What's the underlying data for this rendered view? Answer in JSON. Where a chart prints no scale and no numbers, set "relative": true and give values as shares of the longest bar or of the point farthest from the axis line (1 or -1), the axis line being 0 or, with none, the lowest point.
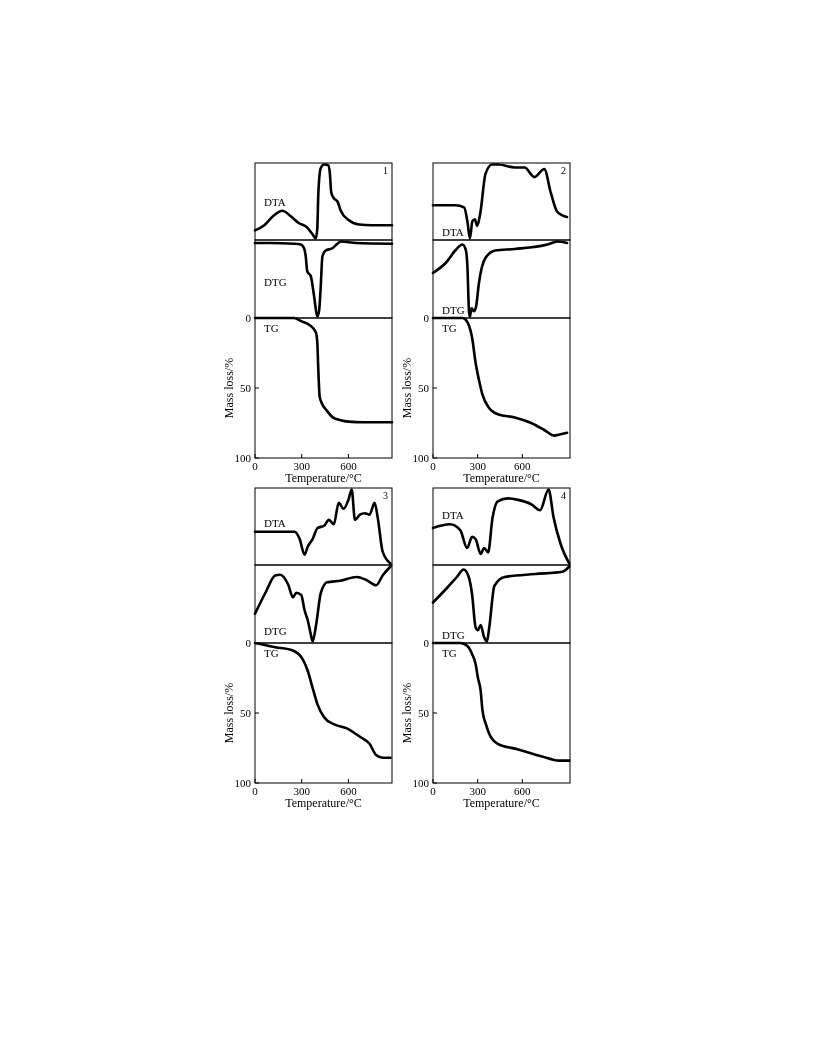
{
  "chart_data": [
    {
      "type": "line",
      "title": "1",
      "relative": true,
      "xlim": [
        0,
        880
      ],
      "x": [
        0,
        60,
        120,
        176,
        230,
        280,
        330,
        369,
        390,
        400,
        407,
        422,
        444,
        470,
        480,
        490,
        508,
        530,
        551,
        600,
        670,
        750,
        880
      ],
      "series": [
        {
          "name": "DTA",
          "color": "#000000",
          "values": [
            0.11,
            0.18,
            0.31,
            0.375,
            0.3,
            0.21,
            0.16,
            0.06,
            0,
            0.13,
            0.62,
            0.95,
            1,
            0.99,
            0.9,
            0.62,
            0.54,
            0.5,
            0.375,
            0.25,
            0.19,
            0.18,
            0.18
          ]
        }
      ]
    },
    {
      "type": "line",
      "relative": true,
      "xlim": [
        0,
        880
      ],
      "x": [
        0,
        100,
        250,
        294,
        315,
        326,
        336,
        358,
        379,
        400,
        412,
        422,
        433,
        454,
        497,
        529,
        551,
        650,
        880
      ],
      "series": [
        {
          "name": "DTG",
          "color": "#000000",
          "values": [
            0.98,
            0.98,
            0.97,
            0.96,
            0.91,
            0.8,
            0.6,
            0.54,
            0.28,
            0,
            0.08,
            0.39,
            0.8,
            0.88,
            0.91,
            0.97,
            1,
            0.98,
            0.97
          ]
        }
      ]
    },
    {
      "type": "line",
      "xlim": [
        0,
        880
      ],
      "ylim": [
        100,
        0
      ],
      "xticks": [
        0,
        300,
        600
      ],
      "yticks": [
        0,
        50,
        100
      ],
      "xlabel": "Temperature/°C",
      "ylabel": "Mass loss/%",
      "x": [
        0,
        250,
        300,
        350,
        390,
        400,
        405,
        410,
        415,
        430,
        460,
        500,
        550,
        600,
        700,
        880
      ],
      "series": [
        {
          "name": "TG",
          "color": "#000000",
          "values": [
            0,
            0,
            2.4,
            5,
            10,
            17,
            32,
            46,
            56,
            61,
            66,
            71,
            73,
            74,
            74.5,
            74.5
          ]
        }
      ]
    },
    {
      "type": "line",
      "title": "2",
      "relative": true,
      "xlim": [
        0,
        920
      ],
      "x": [
        0,
        150,
        209,
        231,
        248,
        264,
        281,
        297,
        319,
        352,
        396,
        440,
        549,
        615,
        681,
        747,
        791,
        835,
        900
      ],
      "series": [
        {
          "name": "DTA",
          "color": "#000000",
          "values": [
            0.45,
            0.45,
            0.42,
            0.23,
            0,
            0.23,
            0.26,
            0.17,
            0.36,
            0.87,
            1,
            1,
            0.96,
            0.96,
            0.83,
            0.94,
            0.62,
            0.36,
            0.29
          ]
        }
      ]
    },
    {
      "type": "line",
      "relative": true,
      "xlim": [
        0,
        920
      ],
      "x": [
        0,
        88,
        154,
        198,
        220,
        231,
        242,
        248,
        259,
        275,
        290,
        308,
        352,
        418,
        549,
        769,
        835,
        900
      ],
      "series": [
        {
          "name": "DTG",
          "color": "#000000",
          "values": [
            0.58,
            0.72,
            0.89,
            0.96,
            0.89,
            0.67,
            0.06,
            0,
            0.11,
            0.07,
            0.14,
            0.44,
            0.78,
            0.88,
            0.9,
            0.96,
            1,
            0.98
          ]
        }
      ]
    },
    {
      "type": "line",
      "xlim": [
        0,
        920
      ],
      "ylim": [
        100,
        0
      ],
      "xticks": [
        0,
        300,
        600
      ],
      "yticks": [
        0,
        50,
        100
      ],
      "xlabel": "Temperature/°C",
      "ylabel": "Mass loss/%",
      "x": [
        0,
        200,
        231,
        264,
        286,
        308,
        330,
        374,
        440,
        549,
        660,
        747,
        813,
        857,
        900
      ],
      "series": [
        {
          "name": "TG",
          "color": "#000000",
          "values": [
            0,
            0,
            3,
            15,
            32,
            44,
            54,
            64,
            69,
            71,
            75,
            80,
            84,
            83,
            82
          ]
        }
      ]
    },
    {
      "type": "line",
      "title": "3",
      "relative": true,
      "xlim": [
        0,
        880
      ],
      "x": [
        0,
        255,
        287,
        318,
        339,
        370,
        402,
        444,
        475,
        506,
        538,
        569,
        600,
        621,
        642,
        674,
        705,
        736,
        768,
        789,
        820,
        870
      ],
      "series": [
        {
          "name": "DTA",
          "color": "#000000",
          "values": [
            0.43,
            0.43,
            0.33,
            0.12,
            0.23,
            0.33,
            0.48,
            0.51,
            0.59,
            0.53,
            0.82,
            0.74,
            0.86,
            1,
            0.59,
            0.66,
            0.68,
            0.66,
            0.82,
            0.61,
            0.16,
            0
          ]
        }
      ]
    },
    {
      "type": "line",
      "relative": true,
      "xlim": [
        0,
        880
      ],
      "x": [
        0,
        67,
        130,
        161,
        213,
        244,
        265,
        297,
        318,
        339,
        360,
        370,
        391,
        423,
        464,
        548,
        653,
        715,
        778,
        820,
        870
      ],
      "series": [
        {
          "name": "DTG",
          "color": "#000000",
          "values": [
            0.37,
            0.65,
            0.88,
            0.89,
            0.76,
            0.59,
            0.65,
            0.62,
            0.42,
            0.28,
            0.08,
            0,
            0.2,
            0.65,
            0.79,
            0.81,
            0.86,
            0.82,
            0.75,
            0.88,
            1
          ]
        }
      ]
    },
    {
      "type": "line",
      "xlim": [
        0,
        880
      ],
      "ylim": [
        100,
        0
      ],
      "xticks": [
        0,
        300,
        600
      ],
      "yticks": [
        0,
        50,
        100
      ],
      "xlabel": "Temperature/°C",
      "ylabel": "Mass loss/%",
      "x": [
        0,
        130,
        234,
        297,
        339,
        370,
        402,
        444,
        506,
        590,
        674,
        736,
        778,
        820,
        870
      ],
      "series": [
        {
          "name": "TG",
          "color": "#000000",
          "values": [
            0,
            3,
            5,
            10,
            20,
            32,
            44,
            53,
            58,
            61,
            67,
            72,
            80,
            82,
            82
          ]
        }
      ]
    },
    {
      "type": "line",
      "title": "4",
      "relative": true,
      "xlim": [
        0,
        920
      ],
      "x": [
        0,
        114,
        183,
        229,
        263,
        286,
        320,
        343,
        370,
        400,
        435,
        503,
        572,
        661,
        719,
        776,
        810,
        856,
        915
      ],
      "series": [
        {
          "name": "DTA",
          "color": "#000000",
          "values": [
            0.48,
            0.53,
            0.45,
            0.21,
            0.36,
            0.33,
            0.13,
            0.21,
            0.15,
            0.62,
            0.84,
            0.88,
            0.86,
            0.8,
            0.72,
            1,
            0.62,
            0.27,
            0
          ]
        }
      ]
    },
    {
      "type": "line",
      "relative": true,
      "xlim": [
        0,
        920
      ],
      "x": [
        0,
        92,
        160,
        206,
        240,
        263,
        286,
        302,
        320,
        343,
        362,
        378,
        412,
        481,
        686,
        869,
        915
      ],
      "series": [
        {
          "name": "DTG",
          "color": "#000000",
          "values": [
            0.52,
            0.71,
            0.86,
            0.96,
            0.86,
            0.62,
            0.19,
            0.15,
            0.22,
            0.06,
            0,
            0.19,
            0.74,
            0.86,
            0.9,
            0.93,
            1
          ]
        }
      ]
    },
    {
      "type": "line",
      "xlim": [
        0,
        920
      ],
      "ylim": [
        100,
        0
      ],
      "xticks": [
        0,
        300,
        600
      ],
      "yticks": [
        0,
        50,
        100
      ],
      "xlabel": "Temperature/°C",
      "ylabel": "Mass loss/%",
      "x": [
        0,
        183,
        229,
        263,
        286,
        302,
        320,
        332,
        355,
        378,
        435,
        572,
        732,
        847,
        915
      ],
      "series": [
        {
          "name": "TG",
          "color": "#000000",
          "values": [
            0,
            0,
            2,
            8,
            15,
            25,
            34,
            48,
            58,
            65,
            72,
            76,
            81,
            84,
            84
          ]
        }
      ]
    }
  ]
}
